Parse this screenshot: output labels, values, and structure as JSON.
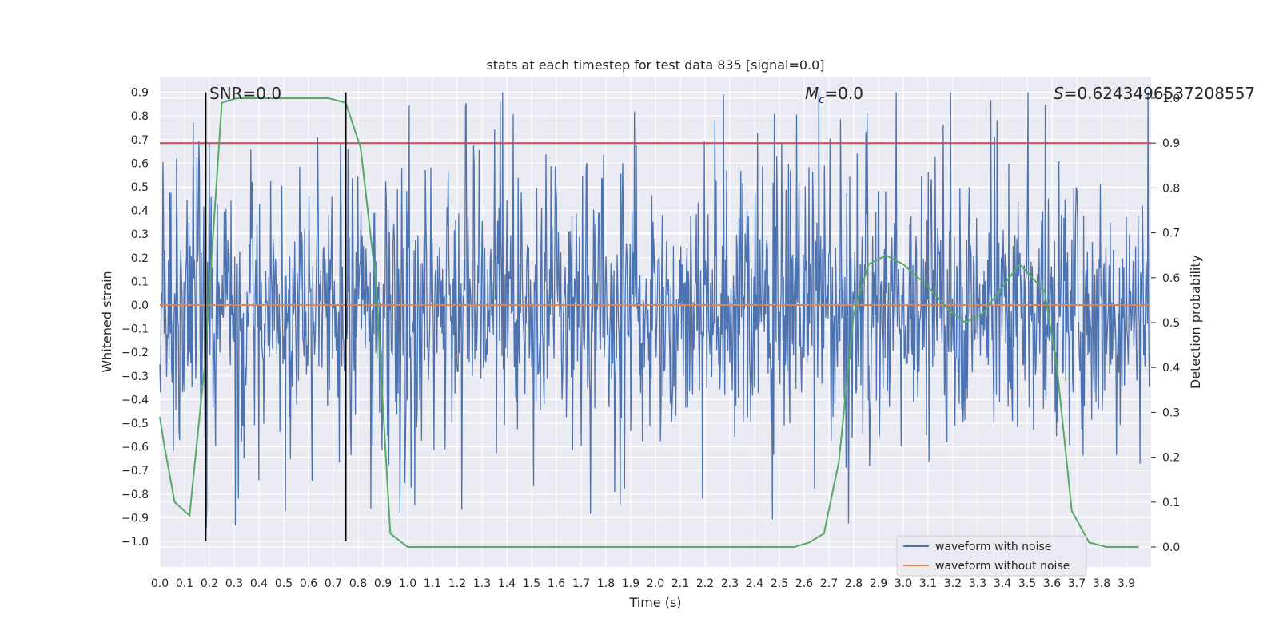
{
  "chart_data": {
    "type": "line",
    "title": "stats at each timestep for test data 835 [signal=0.0]",
    "xlabel": "Time (s)",
    "ylabel_left": "Whitened strain",
    "ylabel_right": "Detection probability",
    "xlim": [
      0.0,
      4.0
    ],
    "ylim_left": [
      -1.05,
      1.0
    ],
    "ylim_right": [
      -0.05,
      1.05
    ],
    "x_ticks": [
      "0.0",
      "0.1",
      "0.2",
      "0.3",
      "0.4",
      "0.5",
      "0.6",
      "0.7",
      "0.8",
      "0.9",
      "1.0",
      "1.1",
      "1.2",
      "1.3",
      "1.4",
      "1.5",
      "1.6",
      "1.7",
      "1.8",
      "1.9",
      "2.0",
      "2.1",
      "2.2",
      "2.3",
      "2.4",
      "2.5",
      "2.6",
      "2.7",
      "2.8",
      "2.9",
      "3.0",
      "3.1",
      "3.2",
      "3.3",
      "3.4",
      "3.5",
      "3.6",
      "3.7",
      "3.8",
      "3.9"
    ],
    "y_ticks_left": [
      "0.9",
      "0.8",
      "0.7",
      "0.6",
      "0.5",
      "0.4",
      "0.3",
      "0.2",
      "0.1",
      "0.0",
      "−0.1",
      "−0.2",
      "−0.3",
      "−0.4",
      "−0.5",
      "−0.6",
      "−0.7",
      "−0.8",
      "−0.9",
      "−1.0"
    ],
    "y_ticks_right": [
      "1.0",
      "0.9",
      "0.8",
      "0.7",
      "0.6",
      "0.5",
      "0.4",
      "0.3",
      "0.2",
      "0.1",
      "0.0"
    ],
    "annotations": {
      "snr": "SNR=0.0",
      "mc_symbol": "M",
      "mc_sub": "c",
      "mc_value": "=0.0",
      "s_symbol": "S",
      "s_value": "=0.6243496537208557"
    },
    "threshold_right": 0.9,
    "vertical_lines_x": [
      0.185,
      0.75
    ],
    "series": [
      {
        "name": "waveform with noise",
        "color": "#4c72b0",
        "note_amplitude_range": [
          -1.0,
          0.9
        ]
      },
      {
        "name": "waveform without noise",
        "color": "#dd8452",
        "value": 0.0
      },
      {
        "color": "#55a868",
        "axis": "right",
        "x": [
          0.0,
          0.02,
          0.06,
          0.12,
          0.18,
          0.25,
          0.31,
          0.4,
          0.5,
          0.6,
          0.68,
          0.75,
          0.81,
          0.87,
          0.93,
          1.0,
          1.06,
          1.2,
          1.5,
          1.8,
          2.1,
          2.4,
          2.56,
          2.62,
          2.68,
          2.74,
          2.8,
          2.86,
          2.93,
          3.0,
          3.1,
          3.18,
          3.25,
          3.32,
          3.4,
          3.47,
          3.57,
          3.62,
          3.68,
          3.75,
          3.82,
          3.95
        ],
        "y": [
          0.29,
          0.22,
          0.1,
          0.07,
          0.4,
          0.99,
          1.0,
          1.0,
          1.0,
          1.0,
          1.0,
          0.99,
          0.89,
          0.6,
          0.03,
          0.0,
          0.0,
          0.0,
          0.0,
          0.0,
          0.0,
          0.0,
          0.0,
          0.01,
          0.03,
          0.19,
          0.52,
          0.63,
          0.65,
          0.63,
          0.58,
          0.53,
          0.5,
          0.52,
          0.58,
          0.63,
          0.57,
          0.4,
          0.08,
          0.01,
          0.0,
          0.0
        ]
      }
    ],
    "legend_placement": "lower-right",
    "grid": true
  }
}
